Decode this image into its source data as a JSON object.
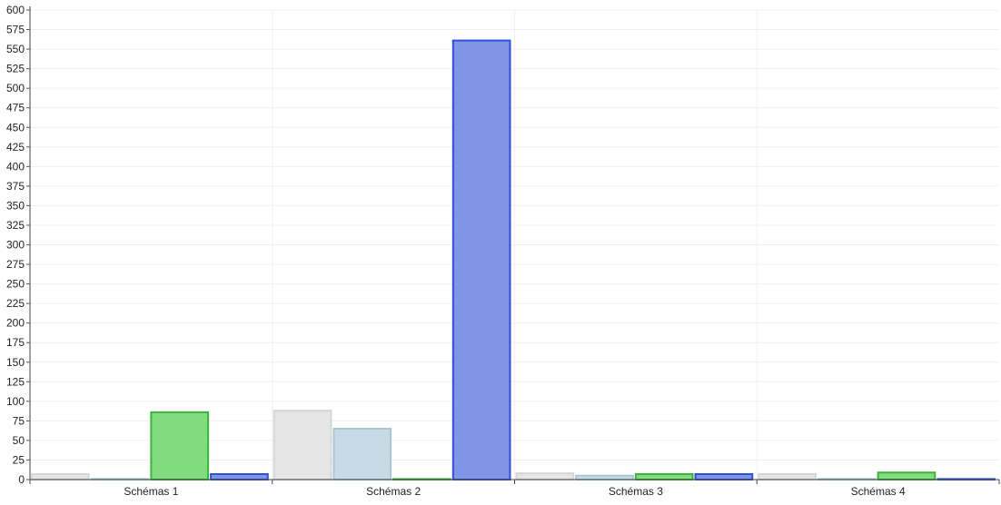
{
  "chart_data": {
    "type": "bar",
    "categories": [
      "Schémas 1",
      "Schémas 2",
      "Schémas 3",
      "Schémas 4"
    ],
    "series": [
      {
        "values": [
          7,
          88,
          8,
          7
        ],
        "fill": "#e6e6e6",
        "stroke": "#d6d6d6"
      },
      {
        "values": [
          0,
          65,
          5,
          0
        ],
        "fill": "#c7dbe6",
        "stroke": "#a9c6d6"
      },
      {
        "values": [
          86,
          0,
          7,
          9
        ],
        "fill": "#7fdd7f",
        "stroke": "#3cb43c"
      },
      {
        "values": [
          7,
          561,
          7,
          0
        ],
        "fill": "#7f96e6",
        "stroke": "#2f4fd6"
      }
    ],
    "title": "",
    "xlabel": "",
    "ylabel": "",
    "ylim": [
      0,
      600
    ],
    "ytick_step": 25,
    "yticks": [
      "0",
      "25",
      "50",
      "75",
      "100",
      "125",
      "150",
      "175",
      "200",
      "225",
      "250",
      "275",
      "300",
      "325",
      "350",
      "375",
      "400",
      "425",
      "450",
      "475",
      "500",
      "525",
      "550",
      "575",
      "600"
    ],
    "grid": true,
    "legend": "none"
  }
}
